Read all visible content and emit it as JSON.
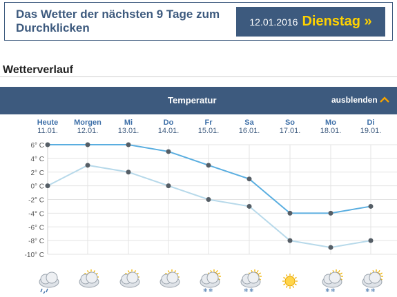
{
  "header": {
    "title": "Das Wetter der nächsten 9 Tage zum Durchklicken",
    "date": "12.01.2016",
    "weekday": "Dienstag »"
  },
  "section": {
    "title": "Wetterverlauf"
  },
  "panel": {
    "title": "Temperatur",
    "toggle_label": "ausblenden"
  },
  "colors": {
    "brand": "#3d5a7e",
    "accent": "#ffd200",
    "max_line": "#5aaee0",
    "min_line": "#b7d9ea",
    "marker": "#555e66"
  },
  "days": [
    {
      "name": "Heute",
      "date": "11.01.",
      "icon": "cloud-rain-icon"
    },
    {
      "name": "Morgen",
      "date": "12.01.",
      "icon": "sun-cloud-icon"
    },
    {
      "name": "Mi",
      "date": "13.01.",
      "icon": "sun-cloud-icon"
    },
    {
      "name": "Do",
      "date": "14.01.",
      "icon": "sun-cloud-icon"
    },
    {
      "name": "Fr",
      "date": "15.01.",
      "icon": "cloud-snow-icon"
    },
    {
      "name": "Sa",
      "date": "16.01.",
      "icon": "cloud-snow-icon"
    },
    {
      "name": "So",
      "date": "17.01.",
      "icon": "sun-icon"
    },
    {
      "name": "Mo",
      "date": "18.01.",
      "icon": "cloud-snow-icon"
    },
    {
      "name": "Di",
      "date": "19.01.",
      "icon": "cloud-snow-icon"
    }
  ],
  "chart_data": {
    "type": "line",
    "categories": [
      "11.01.",
      "12.01.",
      "13.01.",
      "14.01.",
      "15.01.",
      "16.01.",
      "17.01.",
      "18.01.",
      "19.01."
    ],
    "series": [
      {
        "values": [
          6,
          6,
          6,
          5,
          3,
          1,
          -4,
          -4,
          -3
        ]
      },
      {
        "values": [
          0,
          3,
          2,
          0,
          -2,
          -3,
          -8,
          -9,
          -8
        ]
      }
    ],
    "ylim": [
      -10,
      6
    ],
    "yticks": [
      "6° C",
      "4° C",
      "2° C",
      "0° C",
      "-2° C",
      "-4° C",
      "-6° C",
      "-8° C",
      "-10° C"
    ],
    "grid": true
  }
}
